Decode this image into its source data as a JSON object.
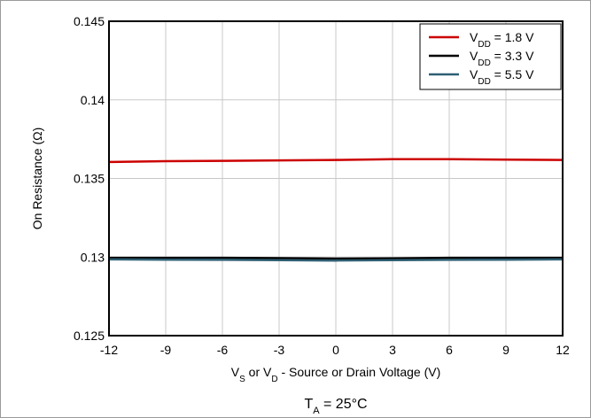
{
  "chart_data": {
    "type": "line",
    "xlabel": {
      "parts": [
        {
          "t": "V",
          "sub": false
        },
        {
          "t": "S",
          "sub": true
        },
        {
          "t": " or V",
          "sub": false
        },
        {
          "t": "D",
          "sub": true
        },
        {
          "t": " - Source or Drain Voltage (V)",
          "sub": false
        }
      ]
    },
    "ylabel": "On Resistance (Ω)",
    "xlim": [
      -12,
      12
    ],
    "ylim": [
      0.125,
      0.145
    ],
    "xticks": [
      -12,
      -9,
      -6,
      -3,
      0,
      3,
      6,
      9,
      12
    ],
    "yticks": [
      0.125,
      0.13,
      0.135,
      0.14,
      0.145
    ],
    "ytick_labels": [
      "0.125",
      "0.13",
      "0.135",
      "0.14",
      "0.145"
    ],
    "grid": true,
    "legend_position": "top-right",
    "series": [
      {
        "name": {
          "parts": [
            {
              "t": "V",
              "sub": false
            },
            {
              "t": "DD",
              "sub": true
            },
            {
              "t": " = 1.8 V",
              "sub": false
            }
          ]
        },
        "color": "#cc0000",
        "x": [
          -12,
          -9,
          -6,
          -3,
          0,
          3,
          6,
          9,
          12
        ],
        "y": [
          0.13605,
          0.1361,
          0.13612,
          0.13615,
          0.13618,
          0.13622,
          0.13622,
          0.1362,
          0.13618
        ]
      },
      {
        "name": {
          "parts": [
            {
              "t": "V",
              "sub": false
            },
            {
              "t": "DD",
              "sub": true
            },
            {
              "t": " = 3.3 V",
              "sub": false
            }
          ]
        },
        "color": "#000000",
        "x": [
          -12,
          -9,
          -6,
          -3,
          0,
          3,
          6,
          9,
          12
        ],
        "y": [
          0.12995,
          0.12995,
          0.12995,
          0.12993,
          0.1299,
          0.12992,
          0.12995,
          0.12995,
          0.12995
        ]
      },
      {
        "name": {
          "parts": [
            {
              "t": "V",
              "sub": false
            },
            {
              "t": "DD",
              "sub": true
            },
            {
              "t": " = 5.5 V",
              "sub": false
            }
          ]
        },
        "color": "#2e5f73",
        "x": [
          -12,
          -9,
          -6,
          -3,
          0,
          3,
          6,
          9,
          12
        ],
        "y": [
          0.12985,
          0.12983,
          0.12982,
          0.1298,
          0.12978,
          0.1298,
          0.12982,
          0.12983,
          0.12985
        ]
      }
    ],
    "annotation": {
      "parts": [
        {
          "t": "T",
          "sub": false
        },
        {
          "t": "A",
          "sub": true
        },
        {
          "t": " = 25°C",
          "sub": false
        }
      ]
    }
  }
}
